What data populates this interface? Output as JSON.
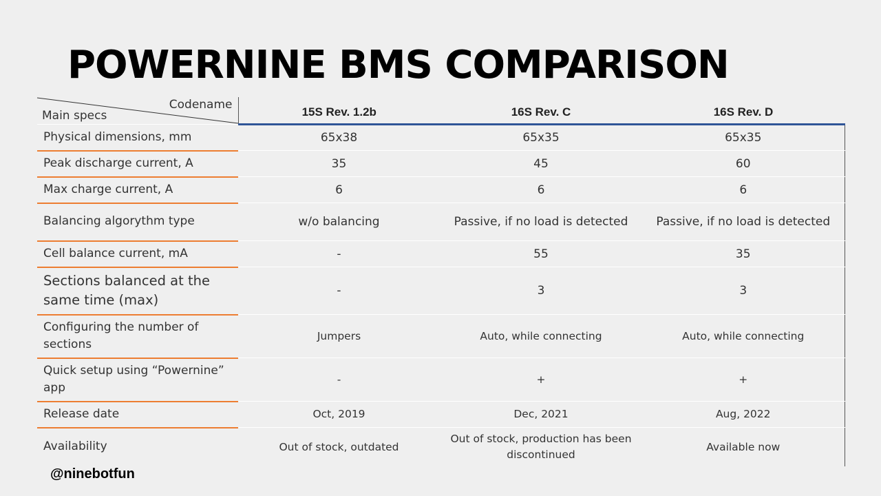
{
  "slide": {
    "title": "POWERNINE BMS COMPARISON",
    "footer_handle": "@ninebotfun"
  },
  "table": {
    "corner_top": "Codename",
    "corner_bottom": "Main specs",
    "columns": [
      "15S Rev. 1.2b",
      "16S Rev. C",
      "16S Rev. D"
    ],
    "rows": [
      {
        "spec": "Physical dimensions, mm",
        "values": [
          "65x38",
          "65x35",
          "65x35"
        ]
      },
      {
        "spec": "Peak discharge current, A",
        "values": [
          "35",
          "45",
          "60"
        ]
      },
      {
        "spec": "Max charge current, A",
        "values": [
          "6",
          "6",
          "6"
        ]
      },
      {
        "spec": "Balancing algorythm type",
        "values": [
          "w/o balancing",
          "Passive, if no load is detected",
          "Passive, if no load is detected"
        ]
      },
      {
        "spec": "Cell balance current, mA",
        "values": [
          "-",
          "55",
          "35"
        ]
      },
      {
        "spec": "Sections balanced at the same time (max)",
        "values": [
          "-",
          "3",
          "3"
        ]
      },
      {
        "spec": "Configuring the number of sections",
        "values": [
          "Jumpers",
          "Auto, while connecting",
          "Auto, while connecting"
        ]
      },
      {
        "spec": "Quick setup using “Powernine” app",
        "values": [
          "-",
          "+",
          "+"
        ]
      },
      {
        "spec": "Release date",
        "values": [
          "Oct, 2019",
          "Dec, 2021",
          "Aug, 2022"
        ]
      },
      {
        "spec": "Availability",
        "values": [
          "Out of stock, outdated",
          "Out of stock, production has been discontinued",
          "Available now"
        ]
      }
    ]
  }
}
